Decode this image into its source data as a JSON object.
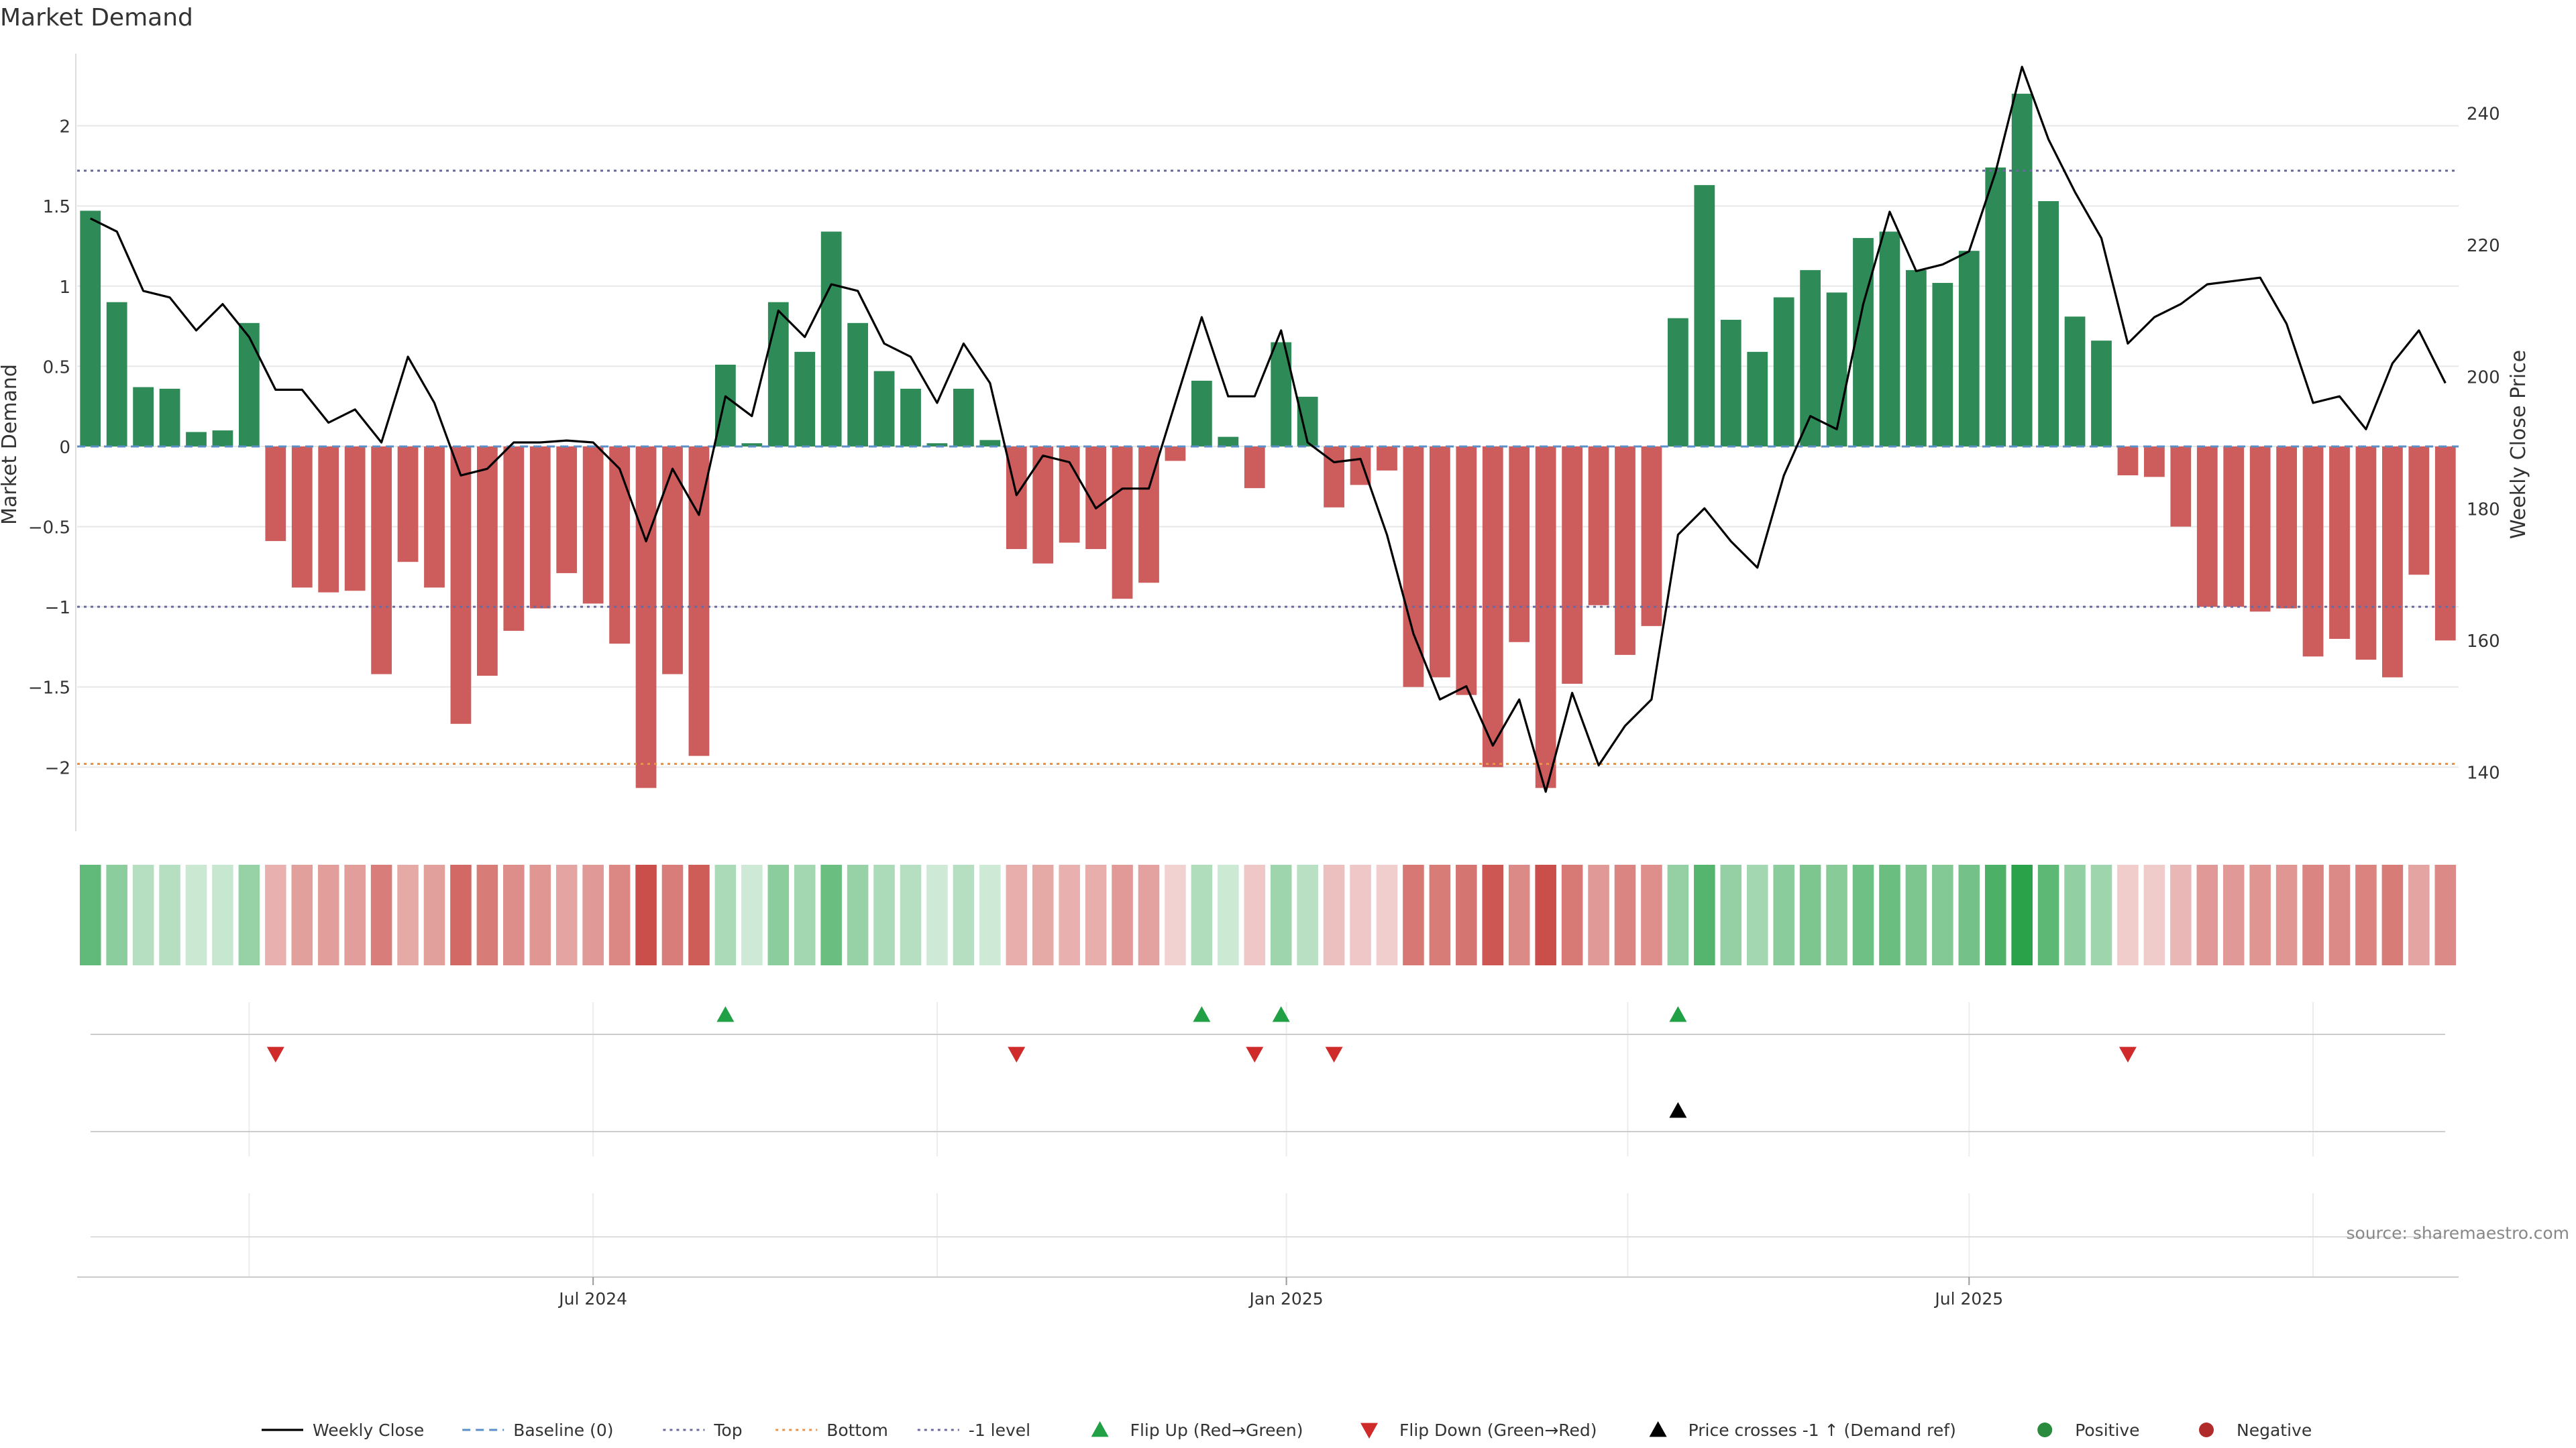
{
  "chart_data": {
    "type": "bar",
    "title": "Market Demand",
    "ylabel_left": "Market Demand",
    "ylabel_right": "Weekly Close Price",
    "ylim_left": [
      -2.4,
      2.45
    ],
    "ylim_right": [
      131,
      249
    ],
    "y_ticks_left": [
      2,
      1.5,
      1,
      0.5,
      0,
      -0.5,
      -1,
      -1.5,
      -2
    ],
    "y_tick_labels_left": [
      "2",
      "1.5",
      "1",
      "0.5",
      "0",
      "−0.5",
      "−1",
      "−1.5",
      "−2"
    ],
    "y_ticks_right": [
      240,
      220,
      200,
      180,
      160,
      140
    ],
    "y_tick_labels_right": [
      "240",
      "220",
      "200",
      "180",
      "160",
      "140"
    ],
    "x_ticks": [
      {
        "week": 19.5,
        "label": "Jul 2024"
      },
      {
        "week": 45.7,
        "label": "Jan 2025"
      },
      {
        "week": 71.5,
        "label": "Jul 2025"
      }
    ],
    "weekly_grid_weeks": [
      6.5,
      19.5,
      32.5,
      45.7,
      58.6,
      71.5,
      84.5
    ],
    "reference_lines": {
      "top": 1.72,
      "bottom": -1.98,
      "minus_one": -1,
      "baseline": 0
    },
    "series": [
      {
        "name": "Market Demand",
        "values": [
          1.47,
          0.9,
          0.37,
          0.36,
          0.09,
          0.1,
          0.77,
          -0.59,
          -0.88,
          -0.91,
          -0.9,
          -1.42,
          -0.72,
          -0.88,
          -1.73,
          -1.43,
          -1.15,
          -1.01,
          -0.79,
          -0.98,
          -1.23,
          -2.13,
          -1.42,
          -1.93,
          0.51,
          0.02,
          0.9,
          0.59,
          1.34,
          0.77,
          0.47,
          0.36,
          0.02,
          0.36,
          0.04,
          -0.64,
          -0.73,
          -0.6,
          -0.64,
          -0.95,
          -0.85,
          -0.09,
          0.41,
          0.06,
          -0.26,
          0.65,
          0.31,
          -0.38,
          -0.24,
          -0.15,
          -1.5,
          -1.44,
          -1.55,
          -2.0,
          -1.22,
          -2.13,
          -1.48,
          -0.99,
          -1.3,
          -1.12,
          0.8,
          1.63,
          0.79,
          0.59,
          0.93,
          1.1,
          0.96,
          1.3,
          1.34,
          1.1,
          1.02,
          1.22,
          1.74,
          2.2,
          1.53,
          0.81,
          0.66,
          -0.18,
          -0.19,
          -0.5,
          -1.0,
          -1.0,
          -1.03,
          -1.01,
          -1.31,
          -1.2,
          -1.33,
          -1.44,
          -0.8,
          -1.21
        ]
      },
      {
        "name": "Weekly Close",
        "values": [
          224,
          222,
          213,
          212,
          207,
          211,
          206,
          198,
          198,
          193,
          195,
          190,
          203,
          196,
          185,
          186,
          190,
          190,
          190.3,
          190,
          186,
          175,
          186,
          179,
          197,
          194,
          210,
          206,
          214,
          213,
          205,
          203,
          196,
          205,
          199,
          182,
          188,
          187,
          180,
          183,
          183,
          196,
          209,
          197,
          197,
          207,
          190,
          187,
          187.5,
          176,
          161,
          151,
          153,
          144,
          151,
          137,
          152,
          141,
          147,
          151,
          176,
          180,
          175,
          171,
          185,
          194,
          192,
          211,
          225,
          216,
          217,
          219,
          231,
          247,
          236,
          228,
          221,
          205,
          209,
          211,
          214,
          214.5,
          215,
          208,
          196,
          197,
          192,
          202,
          207,
          199
        ]
      }
    ],
    "flip_up_weeks": [
      24,
      42,
      45,
      60
    ],
    "flip_down_weeks": [
      7,
      35,
      44,
      47,
      77
    ],
    "price_cross_weeks": [
      60
    ],
    "legend": [
      {
        "label": "Weekly Close",
        "key": "line-black"
      },
      {
        "label": "Baseline (0)",
        "key": "dash-blue"
      },
      {
        "label": "Top",
        "key": "dot-purple"
      },
      {
        "label": "Bottom",
        "key": "dot-orange"
      },
      {
        "label": "-1 level",
        "key": "dot-purple"
      },
      {
        "label": "Flip Up (Red→Green)",
        "key": "tri-up-green"
      },
      {
        "label": "Flip Down (Green→Red)",
        "key": "tri-down-red"
      },
      {
        "label": "Price crosses -1 ↑ (Demand ref)",
        "key": "tri-up-black"
      },
      {
        "label": "Positive",
        "key": "dot-green"
      },
      {
        "label": "Negative",
        "key": "dot-red"
      }
    ],
    "legend_position": "bottom-center",
    "source_note": "source: sharemaestro.com"
  },
  "colors": {
    "positive": "#2e8b57",
    "negative": "#cd5c5c",
    "price_line": "#000000",
    "flip_up": "#22a045",
    "flip_down": "#d02b2b",
    "top_line": "#6a6aa0",
    "bottom_line": "#e8924a",
    "baseline": "#5b8fc7",
    "grid": "#e8e8e8",
    "axis_text": "#333333"
  }
}
